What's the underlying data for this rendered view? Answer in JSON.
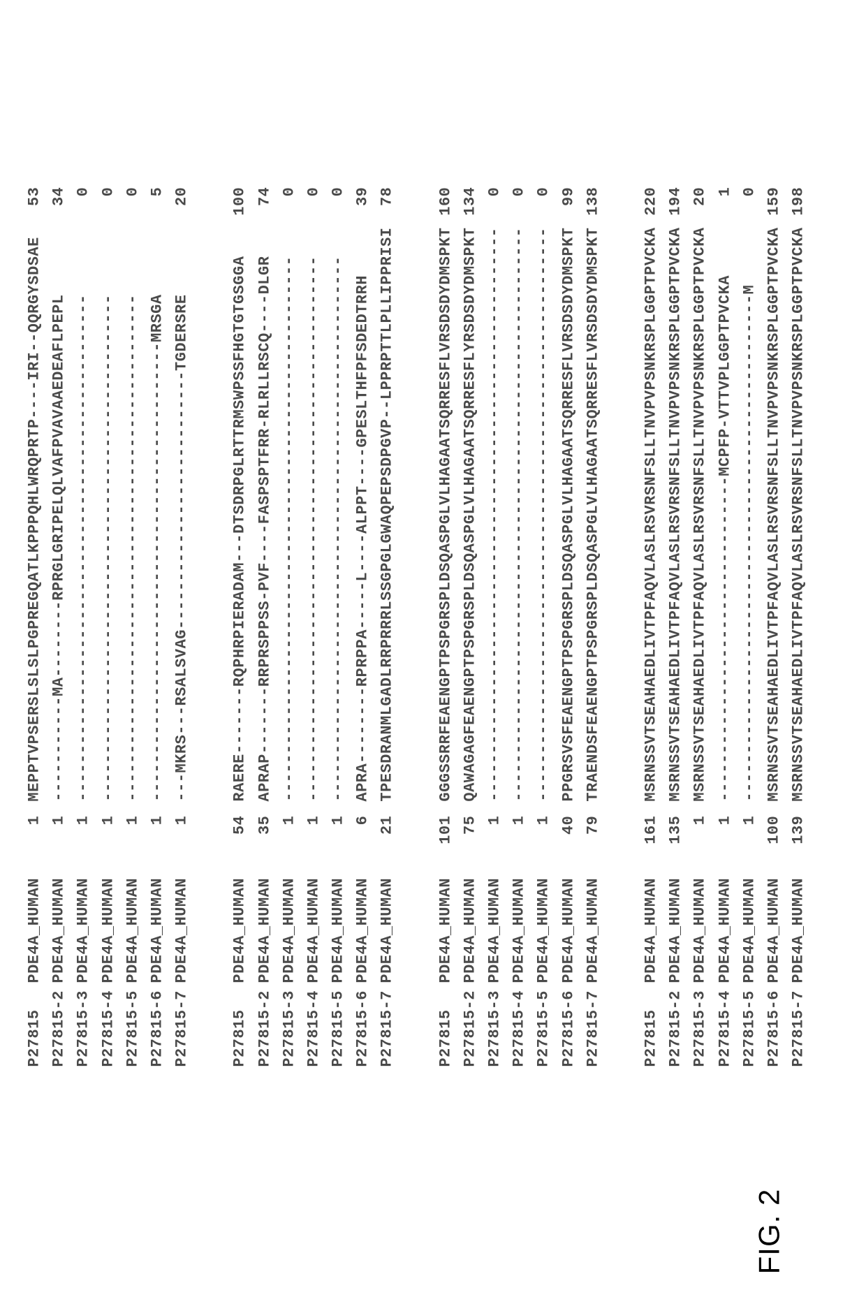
{
  "figureLabel": "FIG. 2",
  "style": {
    "fontSizePx": 22,
    "color": "#4a4a4a",
    "background": "#ffffff"
  },
  "blocks": [
    {
      "rows": [
        {
          "id": "P27815",
          "name": "PDE4A_HUMAN",
          "start": 1,
          "seq": "MEPPTVPSERSLSLSLPGPREGQATLKPPPQHLWRQPRTP----IRI--QQRGYSDSAE",
          "end": 53
        },
        {
          "id": "P27815-2",
          "name": "PDE4A_HUMAN",
          "start": 1,
          "seq": "-----------MA--------RPRGLGRIPELQLVAFPVAVAAEDEAFLPEPL",
          "end": 34
        },
        {
          "id": "P27815-3",
          "name": "PDE4A_HUMAN",
          "start": 1,
          "seq": "-----------------------------------------------------",
          "end": 0
        },
        {
          "id": "P27815-4",
          "name": "PDE4A_HUMAN",
          "start": 1,
          "seq": "-----------------------------------------------------",
          "end": 0
        },
        {
          "id": "P27815-5",
          "name": "PDE4A_HUMAN",
          "start": 1,
          "seq": "-----------------------------------------------------",
          "end": 0
        },
        {
          "id": "P27815-6",
          "name": "PDE4A_HUMAN",
          "start": 1,
          "seq": "------------------------------------------------MRSGA",
          "end": 5
        },
        {
          "id": "P27815-7",
          "name": "PDE4A_HUMAN",
          "start": 1,
          "seq": "---MKRS---RSALSVAG---------------------------TGDERSRE",
          "end": 20
        }
      ]
    },
    {
      "rows": [
        {
          "id": "P27815",
          "name": "PDE4A_HUMAN",
          "start": 54,
          "seq": "RAERE-------RQPHRPIERADAM---DTSDRPGLRTTRMSWPSSFHGTGTGSGGA",
          "end": 100
        },
        {
          "id": "P27815-2",
          "name": "PDE4A_HUMAN",
          "start": 35,
          "seq": "APRAP-------RRPRSPPSS-PVF----FASPSPTFRR-RLRLLRSCQ----DLGR",
          "end": 74
        },
        {
          "id": "P27815-3",
          "name": "PDE4A_HUMAN",
          "start": 1,
          "seq": "---------------------------------------------------------",
          "end": 0
        },
        {
          "id": "P27815-4",
          "name": "PDE4A_HUMAN",
          "start": 1,
          "seq": "---------------------------------------------------------",
          "end": 0
        },
        {
          "id": "P27815-5",
          "name": "PDE4A_HUMAN",
          "start": 1,
          "seq": "---------------------------------------------------------",
          "end": 0
        },
        {
          "id": "P27815-6",
          "name": "PDE4A_HUMAN",
          "start": 6,
          "seq": "APRA--------RPRPPA-----L----ALPPT----GPESLTHFPFSDEDTRRH",
          "end": 39
        },
        {
          "id": "P27815-7",
          "name": "PDE4A_HUMAN",
          "start": 21,
          "seq": "TPESDRANMLGADLRRPRRRLSSGPGLGWAQPEPSDPGVP--LPPRPTTLPLLIPPRISI",
          "end": 78
        }
      ]
    },
    {
      "rows": [
        {
          "id": "P27815",
          "name": "PDE4A_HUMAN",
          "start": 101,
          "seq": "GGGSSRRFEAENGPTPSPGRSPLDSQASPGLVLHAGAATSQRRESFLVRSDSDYDMSPKT",
          "end": 160
        },
        {
          "id": "P27815-2",
          "name": "PDE4A_HUMAN",
          "start": 75,
          "seq": "QAWAGAGFEAENGPTPSPGRSPLDSQASPGLVLHAGAATSQRRESFLYRSDSDYDMSPKT",
          "end": 134
        },
        {
          "id": "P27815-3",
          "name": "PDE4A_HUMAN",
          "start": 1,
          "seq": "------------------------------------------------------------",
          "end": 0
        },
        {
          "id": "P27815-4",
          "name": "PDE4A_HUMAN",
          "start": 1,
          "seq": "------------------------------------------------------------",
          "end": 0
        },
        {
          "id": "P27815-5",
          "name": "PDE4A_HUMAN",
          "start": 1,
          "seq": "------------------------------------------------------------",
          "end": 0
        },
        {
          "id": "P27815-6",
          "name": "PDE4A_HUMAN",
          "start": 40,
          "seq": "PPGRSVSFEAENGPTPSPGRSPLDSQASPGLVLHAGAATSQRRESFLVRSDSDYDMSPKT",
          "end": 99
        },
        {
          "id": "P27815-7",
          "name": "PDE4A_HUMAN",
          "start": 79,
          "seq": "TRAENDSFEAENGPTPSPGRSPLDSQASPGLVLHAGAATSQRRESFLVRSDSDYDMSPKT",
          "end": 138
        }
      ]
    },
    {
      "rows": [
        {
          "id": "P27815",
          "name": "PDE4A_HUMAN",
          "start": 161,
          "seq": "MSRNSSVTSEAHAEDLIVTPFAQVLASLRSVRSNFSLLTNVPVPSNKRSPLGGPTPVCKA",
          "end": 220
        },
        {
          "id": "P27815-2",
          "name": "PDE4A_HUMAN",
          "start": 135,
          "seq": "MSRNSSVTSEAHAEDLIVTPFAQVLASLRSVRSNFSLLTNVPVPSNKRSPLGGPTPVCKA",
          "end": 194
        },
        {
          "id": "P27815-3",
          "name": "PDE4A_HUMAN",
          "start": 1,
          "seq": "MSRNSSVTSEAHAEDLIVTPFAQVLASLRSVRSNFSLLTNVPVPSNKRSPLGGPTPVCKA",
          "end": 20
        },
        {
          "id": "P27815-4",
          "name": "PDE4A_HUMAN",
          "start": 1,
          "seq": "----------------------------------MCPFP-VTTVPLGGPTPVCKA",
          "end": 1
        },
        {
          "id": "P27815-5",
          "name": "PDE4A_HUMAN",
          "start": 1,
          "seq": "-----------------------------------------------------M",
          "end": 0
        },
        {
          "id": "P27815-6",
          "name": "PDE4A_HUMAN",
          "start": 100,
          "seq": "MSRNSSVTSEAHAEDLIVTPFAQVLASLRSVRSNFSLLTNVPVPSNKRSPLGGPTPVCKA",
          "end": 159
        },
        {
          "id": "P27815-7",
          "name": "PDE4A_HUMAN",
          "start": 139,
          "seq": "MSRNSSVTSEAHAEDLIVTPFAQVLASLRSVRSNFSLLTNVPVPSNKRSPLGGPTPVCKA",
          "end": 198
        }
      ]
    }
  ]
}
